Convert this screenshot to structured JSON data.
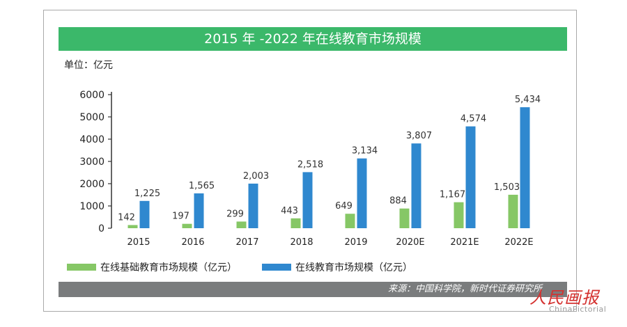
{
  "title": "2015 年 -2022 年在线教育市场规模",
  "unit_label": "单位：亿元",
  "source": "来源：中国科学院，新时代证券研究所",
  "watermark": {
    "text": "人民画报",
    "sub": "ChinaPictorial"
  },
  "colors": {
    "title_bar": "#3bb86a",
    "series_green": "#86c766",
    "series_blue": "#2f88cf",
    "source_bar": "#7a7c7d"
  },
  "chart_data": {
    "type": "bar",
    "categories": [
      "2015",
      "2016",
      "2017",
      "2018",
      "2019",
      "2020E",
      "2021E",
      "2022E"
    ],
    "series": [
      {
        "name": "在线基础教育市场规模（亿元）",
        "values": [
          142,
          197,
          299,
          443,
          649,
          884,
          1167,
          1503
        ],
        "labels": [
          "142",
          "197",
          "299",
          "443",
          "649",
          "884",
          "1,167",
          "1,503"
        ]
      },
      {
        "name": "在线教育市场规模（亿元）",
        "values": [
          1225,
          1565,
          2003,
          2518,
          3134,
          3807,
          4574,
          5434
        ],
        "labels": [
          "1,225",
          "1,565",
          "2,003",
          "2,518",
          "3,134",
          "3,807",
          "4,574",
          "5,434"
        ]
      }
    ],
    "yticks": [
      "0",
      "1000",
      "2000",
      "3000",
      "4000",
      "5000",
      "6000"
    ],
    "ylim": [
      0,
      6000
    ],
    "grid": false,
    "legend_position": "bottom"
  }
}
